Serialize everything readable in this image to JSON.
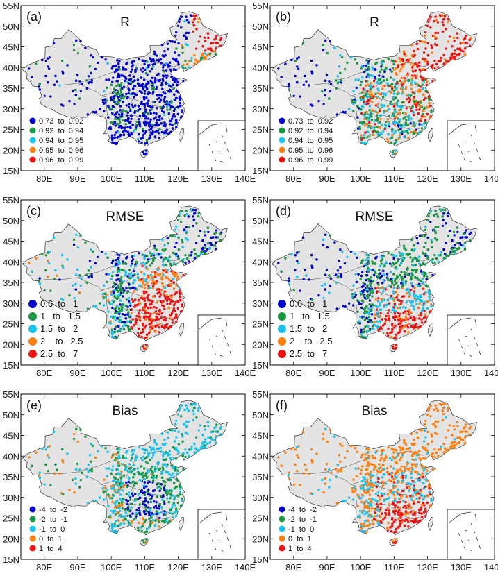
{
  "axes": {
    "lon_ticks": [
      "80E",
      "90E",
      "100E",
      "110E",
      "120E",
      "130E",
      "140E"
    ],
    "lat_ticks": [
      "15N",
      "20N",
      "25N",
      "30N",
      "35N",
      "40N",
      "45N",
      "50N",
      "55N"
    ],
    "lon_range": [
      73,
      140
    ],
    "lat_range": [
      15,
      55
    ]
  },
  "colors": {
    "c1": "#0000cc",
    "c2": "#1a9641",
    "c3": "#19c3ee",
    "c4": "#ff7f0e",
    "c5": "#ee1111",
    "land": "#e4e4e4",
    "border": "#333333"
  },
  "legends": {
    "R": [
      "0.73  to  0.92",
      "0.92  to  0.94",
      "0.94  to  0.95",
      "0.95  to  0.96",
      "0.96  to  0.99"
    ],
    "RMSE": [
      "0.6  to   1",
      "1   to   1.5",
      "1.5  to   2",
      "2    to   2.5",
      "2.5  to   7"
    ],
    "Bias": [
      "-4  to  -2",
      "-2  to  -1",
      "-1  to  0",
      "0  to  1",
      "1  to  4"
    ]
  },
  "panels": [
    {
      "label": "(a)",
      "title": "R",
      "legend": "R",
      "pattern": "a"
    },
    {
      "label": "(b)",
      "title": "R",
      "legend": "R",
      "pattern": "b"
    },
    {
      "label": "(c)",
      "title": "RMSE",
      "legend": "RMSE",
      "pattern": "c"
    },
    {
      "label": "(d)",
      "title": "RMSE",
      "legend": "RMSE",
      "pattern": "d"
    },
    {
      "label": "(e)",
      "title": "Bias",
      "legend": "Bias",
      "pattern": "e"
    },
    {
      "label": "(f)",
      "title": "Bias",
      "legend": "Bias",
      "pattern": "f"
    }
  ]
}
